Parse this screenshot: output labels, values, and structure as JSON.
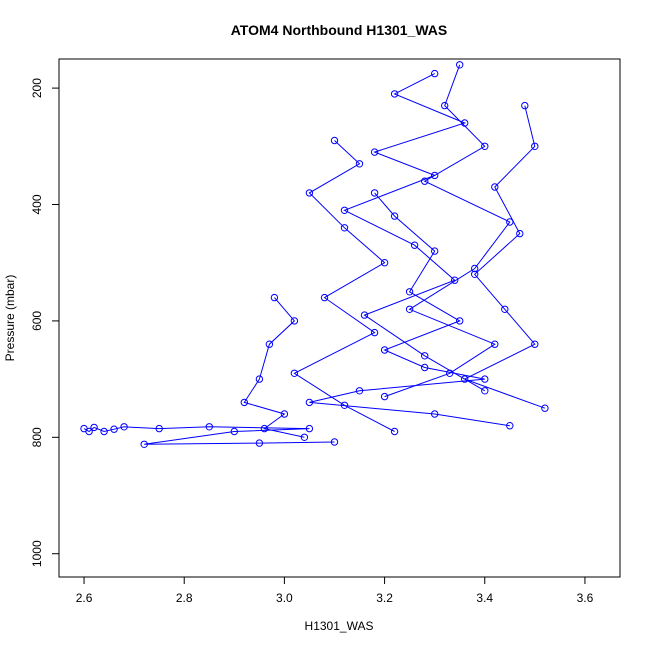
{
  "chart_data": {
    "type": "line",
    "title": "ATOM4 Northbound H1301_WAS",
    "xlabel": "H1301_WAS",
    "ylabel": "Pressure (mbar)",
    "xlim": [
      2.55,
      3.67
    ],
    "ylim": [
      1040,
      150
    ],
    "y_reversed": true,
    "x_ticks": [
      2.6,
      2.8,
      3.0,
      3.2,
      3.4,
      3.6
    ],
    "x_tick_labels": [
      "2.6",
      "2.8",
      "3.0",
      "3.2",
      "3.4",
      "3.6"
    ],
    "y_ticks": [
      200,
      400,
      600,
      800,
      1000
    ],
    "y_tick_labels": [
      "200",
      "400",
      "600",
      "800",
      "1000"
    ],
    "marker": "open-circle",
    "line_and_marker_color": "#0000ff",
    "grid": false,
    "series": [
      {
        "values": [
          {
            "x": 2.6,
            "y": 785
          },
          {
            "x": 2.61,
            "y": 790
          },
          {
            "x": 2.62,
            "y": 783
          },
          {
            "x": 2.64,
            "y": 790
          },
          {
            "x": 2.66,
            "y": 786
          },
          {
            "x": 2.68,
            "y": 782
          },
          {
            "x": 2.75,
            "y": 785
          },
          {
            "x": 2.85,
            "y": 782
          },
          {
            "x": 3.05,
            "y": 785
          },
          {
            "x": 2.9,
            "y": 790
          },
          {
            "x": 2.72,
            "y": 812
          },
          {
            "x": 2.95,
            "y": 810
          },
          {
            "x": 3.1,
            "y": 808
          }
        ]
      },
      {
        "values": [
          {
            "x": 3.18,
            "y": 380
          },
          {
            "x": 3.22,
            "y": 420
          },
          {
            "x": 3.3,
            "y": 480
          },
          {
            "x": 3.25,
            "y": 550
          },
          {
            "x": 3.35,
            "y": 600
          },
          {
            "x": 3.2,
            "y": 650
          },
          {
            "x": 3.28,
            "y": 680
          },
          {
            "x": 3.4,
            "y": 700
          },
          {
            "x": 3.15,
            "y": 720
          },
          {
            "x": 3.05,
            "y": 740
          },
          {
            "x": 3.3,
            "y": 760
          },
          {
            "x": 3.45,
            "y": 780
          }
        ]
      },
      {
        "values": [
          {
            "x": 3.35,
            "y": 160
          },
          {
            "x": 3.32,
            "y": 230
          },
          {
            "x": 3.4,
            "y": 300
          },
          {
            "x": 3.28,
            "y": 360
          },
          {
            "x": 3.45,
            "y": 430
          },
          {
            "x": 3.38,
            "y": 510
          },
          {
            "x": 3.25,
            "y": 580
          },
          {
            "x": 3.42,
            "y": 640
          },
          {
            "x": 3.33,
            "y": 690
          },
          {
            "x": 3.2,
            "y": 730
          }
        ]
      },
      {
        "values": [
          {
            "x": 3.1,
            "y": 290
          },
          {
            "x": 3.15,
            "y": 330
          },
          {
            "x": 3.05,
            "y": 380
          },
          {
            "x": 3.12,
            "y": 440
          },
          {
            "x": 3.2,
            "y": 500
          },
          {
            "x": 3.08,
            "y": 560
          },
          {
            "x": 3.18,
            "y": 620
          },
          {
            "x": 3.02,
            "y": 690
          },
          {
            "x": 3.12,
            "y": 745
          },
          {
            "x": 3.22,
            "y": 790
          }
        ]
      },
      {
        "values": [
          {
            "x": 3.48,
            "y": 230
          },
          {
            "x": 3.5,
            "y": 300
          },
          {
            "x": 3.42,
            "y": 370
          },
          {
            "x": 3.47,
            "y": 450
          },
          {
            "x": 3.38,
            "y": 520
          },
          {
            "x": 3.44,
            "y": 580
          },
          {
            "x": 3.5,
            "y": 640
          },
          {
            "x": 3.36,
            "y": 700
          },
          {
            "x": 3.52,
            "y": 750
          }
        ]
      },
      {
        "values": [
          {
            "x": 2.98,
            "y": 560
          },
          {
            "x": 3.02,
            "y": 600
          },
          {
            "x": 2.97,
            "y": 640
          },
          {
            "x": 2.95,
            "y": 700
          },
          {
            "x": 2.92,
            "y": 740
          },
          {
            "x": 3.0,
            "y": 760
          },
          {
            "x": 2.96,
            "y": 785
          },
          {
            "x": 3.04,
            "y": 800
          }
        ]
      },
      {
        "values": [
          {
            "x": 3.3,
            "y": 175
          },
          {
            "x": 3.22,
            "y": 210
          },
          {
            "x": 3.36,
            "y": 260
          },
          {
            "x": 3.18,
            "y": 310
          },
          {
            "x": 3.3,
            "y": 350
          },
          {
            "x": 3.12,
            "y": 410
          },
          {
            "x": 3.26,
            "y": 470
          },
          {
            "x": 3.34,
            "y": 530
          },
          {
            "x": 3.16,
            "y": 590
          },
          {
            "x": 3.28,
            "y": 660
          },
          {
            "x": 3.4,
            "y": 720
          }
        ]
      }
    ]
  }
}
